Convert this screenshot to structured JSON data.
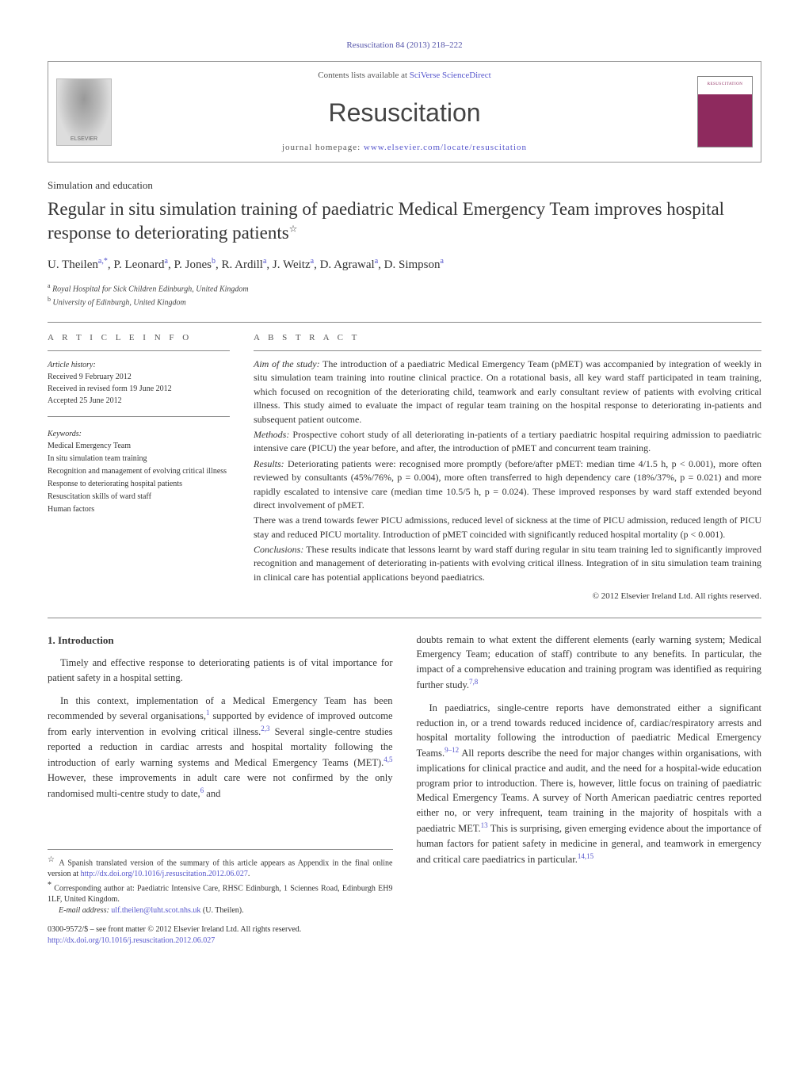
{
  "journal_ref": "Resuscitation 84 (2013) 218–222",
  "header": {
    "contents_prefix": "Contents lists available at ",
    "contents_link": "SciVerse ScienceDirect",
    "journal_name": "Resuscitation",
    "home_prefix": "journal homepage: ",
    "home_link": "www.elsevier.com/locate/resuscitation"
  },
  "section_type": "Simulation and education",
  "title_main": "Regular in situ simulation training of paediatric Medical Emergency Team improves hospital response to deteriorating patients",
  "title_star": "☆",
  "authors_html": "U. Theilen<sup>a,*</sup>, P. Leonard<sup>a</sup>, P. Jones<sup>b</sup>, R. Ardill<sup>a</sup>, J. Weitz<sup>a</sup>, D. Agrawal<sup>a</sup>, D. Simpson<sup>a</sup>",
  "authors": [
    {
      "name": "U. Theilen",
      "aff": "a,*"
    },
    {
      "name": "P. Leonard",
      "aff": "a"
    },
    {
      "name": "P. Jones",
      "aff": "b"
    },
    {
      "name": "R. Ardill",
      "aff": "a"
    },
    {
      "name": "J. Weitz",
      "aff": "a"
    },
    {
      "name": "D. Agrawal",
      "aff": "a"
    },
    {
      "name": "D. Simpson",
      "aff": "a"
    }
  ],
  "affiliations": [
    {
      "sup": "a",
      "text": "Royal Hospital for Sick Children Edinburgh, United Kingdom"
    },
    {
      "sup": "b",
      "text": "University of Edinburgh, United Kingdom"
    }
  ],
  "info": {
    "article_info_head": "a r t i c l e   i n f o",
    "history_label": "Article history:",
    "received": "Received 9 February 2012",
    "revised": "Received in revised form 19 June 2012",
    "accepted": "Accepted 25 June 2012",
    "keywords_label": "Keywords:",
    "keywords": [
      "Medical Emergency Team",
      "In situ simulation team training",
      "Recognition and management of evolving critical illness",
      "Response to deteriorating hospital patients",
      "Resuscitation skills of ward staff",
      "Human factors"
    ]
  },
  "abstract": {
    "head": "a b s t r a c t",
    "aim_label": "Aim of the study:",
    "aim": " The introduction of a paediatric Medical Emergency Team (pMET) was accompanied by integration of weekly in situ simulation team training into routine clinical practice. On a rotational basis, all key ward staff participated in team training, which focused on recognition of the deteriorating child, teamwork and early consultant review of patients with evolving critical illness. This study aimed to evaluate the impact of regular team training on the hospital response to deteriorating in-patients and subsequent patient outcome.",
    "methods_label": "Methods:",
    "methods": " Prospective cohort study of all deteriorating in-patients of a tertiary paediatric hospital requiring admission to paediatric intensive care (PICU) the year before, and after, the introduction of pMET and concurrent team training.",
    "results_label": "Results:",
    "results_p1": " Deteriorating patients were: recognised more promptly (before/after pMET: median time 4/1.5 h, p < 0.001), more often reviewed by consultants (45%/76%, p = 0.004), more often transferred to high dependency care (18%/37%, p = 0.021) and more rapidly escalated to intensive care (median time 10.5/5 h, p = 0.024). These improved responses by ward staff extended beyond direct involvement of pMET.",
    "results_p2": "There was a trend towards fewer PICU admissions, reduced level of sickness at the time of PICU admission, reduced length of PICU stay and reduced PICU mortality. Introduction of pMET coincided with significantly reduced hospital mortality (p < 0.001).",
    "conclusions_label": "Conclusions:",
    "conclusions": " These results indicate that lessons learnt by ward staff during regular in situ team training led to significantly improved recognition and management of deteriorating in-patients with evolving critical illness. Integration of in situ simulation team training in clinical care has potential applications beyond paediatrics.",
    "copyright": "© 2012 Elsevier Ireland Ltd. All rights reserved."
  },
  "body": {
    "intro_head": "1.  Introduction",
    "left_p1": "Timely and effective response to deteriorating patients is of vital importance for patient safety in a hospital setting.",
    "left_p2_a": "In this context, implementation of a Medical Emergency Team has been recommended by several organisations,",
    "left_p2_sup1": "1",
    "left_p2_b": " supported by evidence of improved outcome from early intervention in evolving critical illness.",
    "left_p2_sup2": "2,3",
    "left_p2_c": " Several single-centre studies reported a reduction in cardiac arrests and hospital mortality following the introduction of early warning systems and Medical Emergency Teams (MET).",
    "left_p2_sup3": "4,5",
    "left_p2_d": " However, these improvements in adult care were not confirmed by the only randomised multi-centre study to date,",
    "left_p2_sup4": "6",
    "left_p2_e": " and",
    "right_p1_a": "doubts remain to what extent the different elements (early warning system; Medical Emergency Team; education of staff) contribute to any benefits. In particular, the impact of a comprehensive education and training program was identified as requiring further study.",
    "right_p1_sup": "7,8",
    "right_p2_a": "In paediatrics, single-centre reports have demonstrated either a significant reduction in, or a trend towards reduced incidence of, cardiac/respiratory arrests and hospital mortality following the introduction of paediatric Medical Emergency Teams.",
    "right_p2_sup1": "9–12",
    "right_p2_b": " All reports describe the need for major changes within organisations, with implications for clinical practice and audit, and the need for a hospital-wide education program prior to introduction. There is, however, little focus on training of paediatric Medical Emergency Teams. A survey of North American paediatric centres reported either no, or very infrequent, team training in the majority of hospitals with a paediatric MET.",
    "right_p2_sup2": "13",
    "right_p2_c": " This is surprising, given emerging evidence about the importance of human factors for patient safety in medicine in general, and teamwork in emergency and critical care paediatrics in particular.",
    "right_p2_sup3": "14,15"
  },
  "footnotes": {
    "fn1_star": "☆",
    "fn1_text_a": " A Spanish translated version of the summary of this article appears as Appendix in the final online version at ",
    "fn1_link": "http://dx.doi.org/10.1016/j.resuscitation.2012.06.027",
    "fn1_period": ".",
    "fn2_star": "*",
    "fn2_text": " Corresponding author at: Paediatric Intensive Care, RHSC Edinburgh, 1 Sciennes Road, Edinburgh EH9 1LF, United Kingdom.",
    "fn3_label": "E-mail address: ",
    "fn3_email": "ulf.theilen@luht.scot.nhs.uk",
    "fn3_tail": " (U. Theilen)."
  },
  "doi": {
    "line1": "0300-9572/$ – see front matter © 2012 Elsevier Ireland Ltd. All rights reserved.",
    "line2": "http://dx.doi.org/10.1016/j.resuscitation.2012.06.027"
  },
  "colors": {
    "link": "#5555cc",
    "rule": "#888888",
    "cover_accent": "#8e2a5e"
  }
}
